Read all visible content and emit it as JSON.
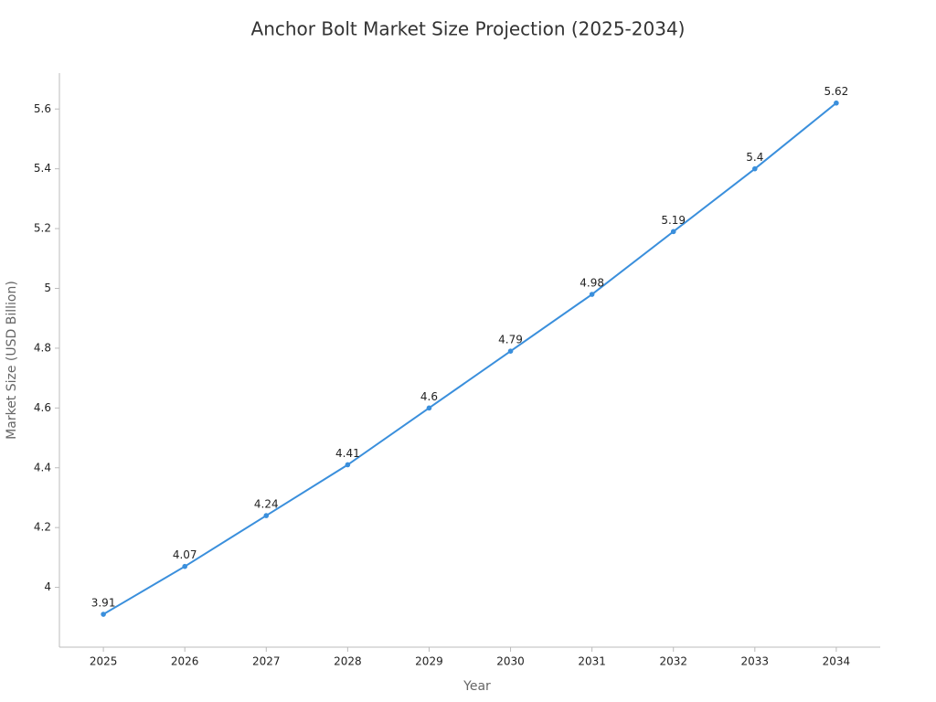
{
  "chart_data": {
    "type": "line",
    "title": "Anchor Bolt Market Size Projection (2025-2034)",
    "x_label": "Year",
    "y_label": "Market Size (USD Billion)",
    "x": [
      2025,
      2026,
      2027,
      2028,
      2029,
      2030,
      2031,
      2032,
      2033,
      2034
    ],
    "series": [
      {
        "name": "Market Size",
        "color": "#3a8fdc",
        "values": [
          3.91,
          4.07,
          4.24,
          4.41,
          4.6,
          4.79,
          4.98,
          5.19,
          5.4,
          5.62
        ]
      }
    ],
    "xlim": [
      2024.46,
      2034.54
    ],
    "xticks": [
      2025,
      2026,
      2027,
      2028,
      2029,
      2030,
      2031,
      2032,
      2033,
      2034
    ],
    "ylim": [
      3.8,
      5.72
    ],
    "yticks": [
      4,
      4.2,
      4.4,
      4.6,
      4.8,
      5,
      5.2,
      5.4,
      5.6
    ],
    "grid": false
  }
}
